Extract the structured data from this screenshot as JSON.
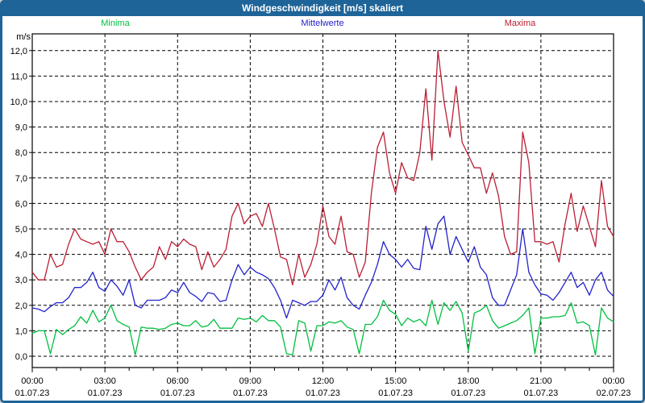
{
  "window": {
    "title": "Windgeschwindigkeit [m/s] skaliert"
  },
  "colors": {
    "titlebar_bg": "#1e6498",
    "frame_border": "#1e6498",
    "title_text": "#ffffff",
    "plot_background": "#ffffff",
    "grid": "#000000",
    "axis": "#000000",
    "minima": "#00bf40",
    "mittelwerte": "#2222cc",
    "maxima": "#bb1e33"
  },
  "chart_data": {
    "type": "line",
    "title": "Windgeschwindigkeit [m/s] skaliert",
    "ylabel": "m/s",
    "xlabel": "",
    "grid": true,
    "grid_style": "dashed",
    "legend_position": "top",
    "ylim": [
      0,
      12
    ],
    "xlim_hours": [
      0,
      24
    ],
    "x_start_hour": 0,
    "x_step_hours": 0.25,
    "y_tick_labels": [
      "0,0",
      "1,0",
      "2,0",
      "3,0",
      "4,0",
      "5,0",
      "6,0",
      "7,0",
      "8,0",
      "9,0",
      "10,0",
      "11,0",
      "12,0"
    ],
    "x_tick_labels": [
      {
        "time": "00:00",
        "date": "01.07.23"
      },
      {
        "time": "03:00",
        "date": "01.07.23"
      },
      {
        "time": "06:00",
        "date": "01.07.23"
      },
      {
        "time": "09:00",
        "date": "01.07.23"
      },
      {
        "time": "12:00",
        "date": "01.07.23"
      },
      {
        "time": "15:00",
        "date": "01.07.23"
      },
      {
        "time": "18:00",
        "date": "01.07.23"
      },
      {
        "time": "21:00",
        "date": "01.07.23"
      },
      {
        "time": "00:00",
        "date": "02.07.23"
      }
    ],
    "series": [
      {
        "name": "Minima",
        "color": "#00bf40",
        "values": [
          0.9,
          1.0,
          1.0,
          0.1,
          1.05,
          0.85,
          1.05,
          1.2,
          1.55,
          1.3,
          1.8,
          1.35,
          1.5,
          2.0,
          1.4,
          1.25,
          1.15,
          0.05,
          1.15,
          1.1,
          1.1,
          1.05,
          1.1,
          1.25,
          1.3,
          1.2,
          1.2,
          1.4,
          1.15,
          1.2,
          1.45,
          1.1,
          1.1,
          1.1,
          1.5,
          1.45,
          1.5,
          1.35,
          1.6,
          1.4,
          1.4,
          1.15,
          0.1,
          0.05,
          1.4,
          1.3,
          0.2,
          1.2,
          1.2,
          1.35,
          1.3,
          1.4,
          1.15,
          1.05,
          0.1,
          1.25,
          1.25,
          1.55,
          2.2,
          1.8,
          1.65,
          1.2,
          1.5,
          1.35,
          1.45,
          1.2,
          2.2,
          1.25,
          2.1,
          1.8,
          2.15,
          1.7,
          0.2,
          1.7,
          1.8,
          2.0,
          1.4,
          1.1,
          1.2,
          1.3,
          1.4,
          1.6,
          1.9,
          0.1,
          1.5,
          1.5,
          1.55,
          1.55,
          1.6,
          2.1,
          1.3,
          1.35,
          1.2,
          0.05,
          1.9,
          1.5,
          1.35
        ]
      },
      {
        "name": "Mittelwerte",
        "color": "#2222cc",
        "values": [
          1.9,
          1.85,
          1.75,
          1.95,
          2.1,
          2.1,
          2.3,
          2.7,
          2.7,
          2.9,
          3.3,
          2.7,
          2.55,
          3.0,
          2.75,
          2.4,
          3.0,
          2.0,
          1.9,
          2.2,
          2.2,
          2.2,
          2.3,
          2.6,
          2.5,
          2.9,
          2.5,
          2.35,
          2.15,
          2.5,
          2.45,
          2.15,
          2.2,
          3.0,
          3.6,
          3.2,
          3.5,
          3.3,
          3.2,
          3.05,
          2.7,
          2.2,
          1.5,
          2.2,
          2.1,
          2.0,
          2.15,
          2.15,
          2.4,
          3.0,
          2.6,
          3.1,
          2.3,
          2.0,
          1.85,
          2.4,
          2.9,
          3.6,
          4.5,
          4.0,
          3.8,
          3.5,
          3.8,
          3.45,
          3.4,
          5.1,
          4.2,
          5.2,
          5.5,
          4.0,
          4.7,
          4.2,
          3.7,
          4.3,
          3.5,
          3.2,
          2.3,
          2.0,
          2.0,
          2.6,
          3.2,
          5.0,
          3.3,
          2.8,
          2.45,
          2.4,
          2.2,
          2.5,
          2.9,
          3.3,
          2.7,
          2.9,
          2.4,
          3.0,
          3.3,
          2.6,
          2.35
        ]
      },
      {
        "name": "Maxima",
        "color": "#bb1e33",
        "values": [
          3.3,
          3.0,
          3.0,
          4.0,
          3.5,
          3.6,
          4.4,
          5.0,
          4.6,
          4.5,
          4.4,
          4.5,
          4.0,
          5.0,
          4.5,
          4.5,
          4.1,
          3.5,
          3.0,
          3.3,
          3.5,
          4.3,
          3.8,
          4.5,
          4.3,
          4.6,
          4.4,
          4.3,
          3.4,
          4.1,
          3.5,
          3.8,
          4.2,
          5.5,
          6.0,
          5.2,
          5.5,
          5.6,
          5.1,
          6.0,
          5.0,
          3.9,
          3.8,
          2.8,
          4.0,
          3.1,
          3.6,
          4.4,
          5.9,
          4.7,
          4.4,
          5.5,
          4.1,
          4.0,
          3.1,
          3.7,
          6.4,
          8.2,
          8.8,
          7.2,
          6.4,
          7.6,
          7.0,
          6.9,
          8.0,
          10.5,
          7.7,
          12.0,
          10.0,
          8.6,
          10.6,
          8.4,
          7.9,
          7.4,
          7.4,
          6.4,
          7.2,
          6.3,
          4.7,
          4.0,
          4.1,
          8.8,
          7.6,
          4.5,
          4.5,
          4.4,
          4.5,
          3.7,
          5.2,
          6.4,
          4.9,
          5.9,
          5.1,
          4.3,
          6.9,
          5.1,
          4.7
        ]
      }
    ]
  }
}
